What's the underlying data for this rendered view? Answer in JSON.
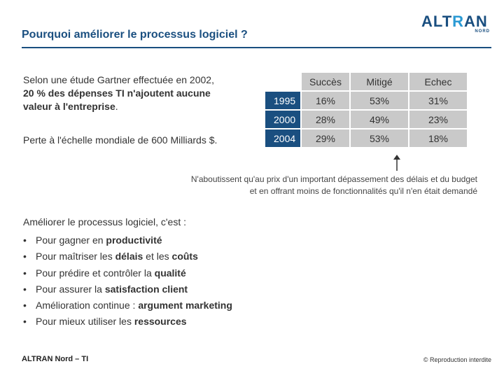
{
  "slide": {
    "title": "Pourquoi améliorer le processus logiciel ?",
    "logo_word_a": "ALT",
    "logo_word_b": "R",
    "logo_word_c": "AN",
    "logo_sub": "NORD"
  },
  "intro": {
    "line1": "Selon une étude Gartner effectuée en 2002,",
    "line2_bold": "20 % des dépenses TI n'ajoutent aucune",
    "line3_bold": "valeur à l'entreprise",
    "line3_end": ".",
    "perte": "Perte à l'échelle mondiale de 600 Milliards $."
  },
  "table": {
    "headers": [
      "Succès",
      "Mitigé",
      "Echec"
    ],
    "rows": [
      {
        "year": "1995",
        "values": [
          "16%",
          "53%",
          "31%"
        ]
      },
      {
        "year": "2000",
        "values": [
          "28%",
          "49%",
          "23%"
        ]
      },
      {
        "year": "2004",
        "values": [
          "29%",
          "53%",
          "18%"
        ]
      }
    ]
  },
  "note": {
    "line1": "N'aboutissent qu'au prix d'un important dépassement des délais et du budget",
    "line2": "et en offrant moins de fonctionnalités qu'il n'en était demandé"
  },
  "ameliorer": {
    "heading": "Améliorer le processus logiciel, c'est :",
    "bullet_char": "•",
    "items": [
      {
        "pre": "Pour gagner en ",
        "bold": "productivité"
      },
      {
        "pre": "Pour maîtriser les ",
        "bold": "délais",
        "mid": " et les ",
        "bold2": "coûts"
      },
      {
        "pre": "Pour prédire et contrôler la ",
        "bold": "qualité"
      },
      {
        "pre": "Pour assurer la ",
        "bold": "satisfaction client"
      },
      {
        "pre": "Amélioration continue : ",
        "bold": "argument marketing"
      },
      {
        "pre": "Pour mieux utiliser les ",
        "bold": "ressources"
      }
    ]
  },
  "footer": {
    "left": "ALTRAN Nord – TI",
    "right": "© Reproduction interdite"
  }
}
